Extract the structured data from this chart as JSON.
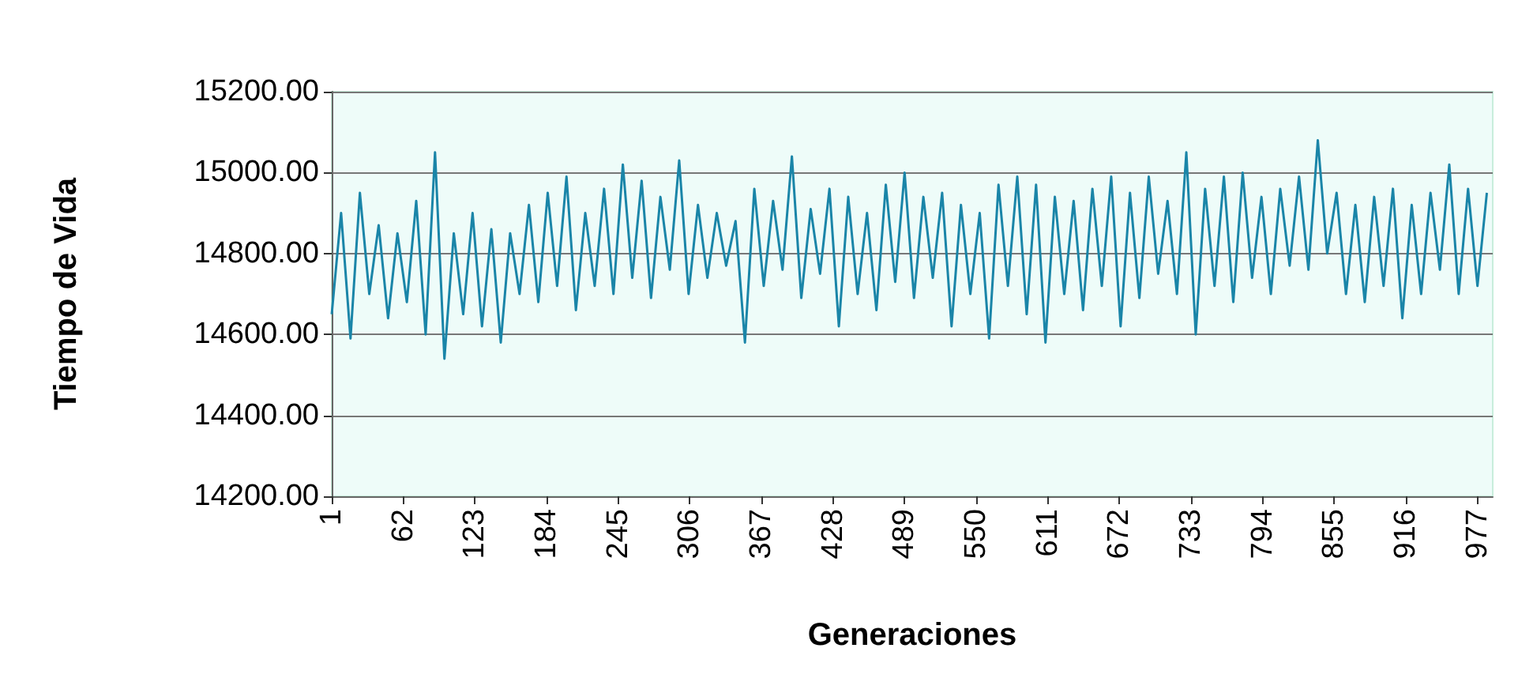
{
  "chart_data": {
    "type": "line",
    "xlabel": "Generaciones",
    "ylabel": "Tiempo de Vida",
    "x": [
      1,
      9,
      17,
      25,
      33,
      41,
      49,
      57,
      65,
      73,
      81,
      89,
      97,
      105,
      113,
      121,
      129,
      137,
      145,
      153,
      161,
      169,
      177,
      185,
      193,
      201,
      209,
      217,
      225,
      233,
      241,
      249,
      257,
      265,
      273,
      281,
      289,
      297,
      305,
      313,
      321,
      329,
      337,
      345,
      353,
      361,
      369,
      377,
      385,
      393,
      401,
      409,
      417,
      425,
      433,
      441,
      449,
      457,
      465,
      473,
      481,
      489,
      497,
      505,
      513,
      521,
      529,
      537,
      545,
      553,
      561,
      569,
      577,
      585,
      593,
      601,
      609,
      617,
      625,
      633,
      641,
      649,
      657,
      665,
      673,
      681,
      689,
      697,
      705,
      713,
      721,
      729,
      737,
      745,
      753,
      761,
      769,
      777,
      785,
      793,
      801,
      809,
      817,
      825,
      833,
      841,
      849,
      857,
      865,
      873,
      881,
      889,
      897,
      905,
      913,
      921,
      929,
      937,
      945,
      953,
      961,
      969,
      977,
      985
    ],
    "series": [
      {
        "color": "#1a85a8",
        "values": [
          14650,
          14900,
          14590,
          14950,
          14700,
          14870,
          14640,
          14850,
          14680,
          14930,
          14600,
          15050,
          14540,
          14850,
          14650,
          14900,
          14620,
          14860,
          14580,
          14850,
          14700,
          14920,
          14680,
          14950,
          14720,
          14990,
          14660,
          14900,
          14720,
          14960,
          14700,
          15020,
          14740,
          14980,
          14690,
          14940,
          14760,
          15030,
          14700,
          14920,
          14740,
          14900,
          14770,
          14880,
          14580,
          14960,
          14720,
          14930,
          14760,
          15040,
          14690,
          14910,
          14750,
          14960,
          14620,
          14940,
          14700,
          14900,
          14660,
          14970,
          14730,
          15000,
          14690,
          14940,
          14740,
          14950,
          14620,
          14920,
          14700,
          14900,
          14590,
          14970,
          14720,
          14990,
          14650,
          14970,
          14580,
          14940,
          14700,
          14930,
          14660,
          14960,
          14720,
          14990,
          14620,
          14950,
          14690,
          14990,
          14750,
          14930,
          14700,
          15050,
          14600,
          14960,
          14720,
          14990,
          14680,
          15000,
          14740,
          14940,
          14700,
          14960,
          14770,
          14990,
          14760,
          15080,
          14800,
          14950,
          14700,
          14920,
          14680,
          14940,
          14720,
          14960,
          14640,
          14920,
          14700,
          14950,
          14760,
          15020,
          14700,
          14960,
          14720,
          14950
        ]
      }
    ],
    "xlim": [
      1,
      990
    ],
    "xticks": [
      1,
      62,
      123,
      184,
      245,
      306,
      367,
      428,
      489,
      550,
      611,
      672,
      733,
      794,
      855,
      916,
      977
    ],
    "ylim": [
      14200,
      15200
    ],
    "yticks": [
      {
        "value": 14200,
        "label": "14200.00"
      },
      {
        "value": 14400,
        "label": "14400.00"
      },
      {
        "value": 14600,
        "label": "14600.00"
      },
      {
        "value": 14800,
        "label": "14800.00"
      },
      {
        "value": 15000,
        "label": "15000.00"
      },
      {
        "value": 15200,
        "label": "15200.00"
      }
    ],
    "grid": "y",
    "marker": "none",
    "line_style": "solid"
  }
}
